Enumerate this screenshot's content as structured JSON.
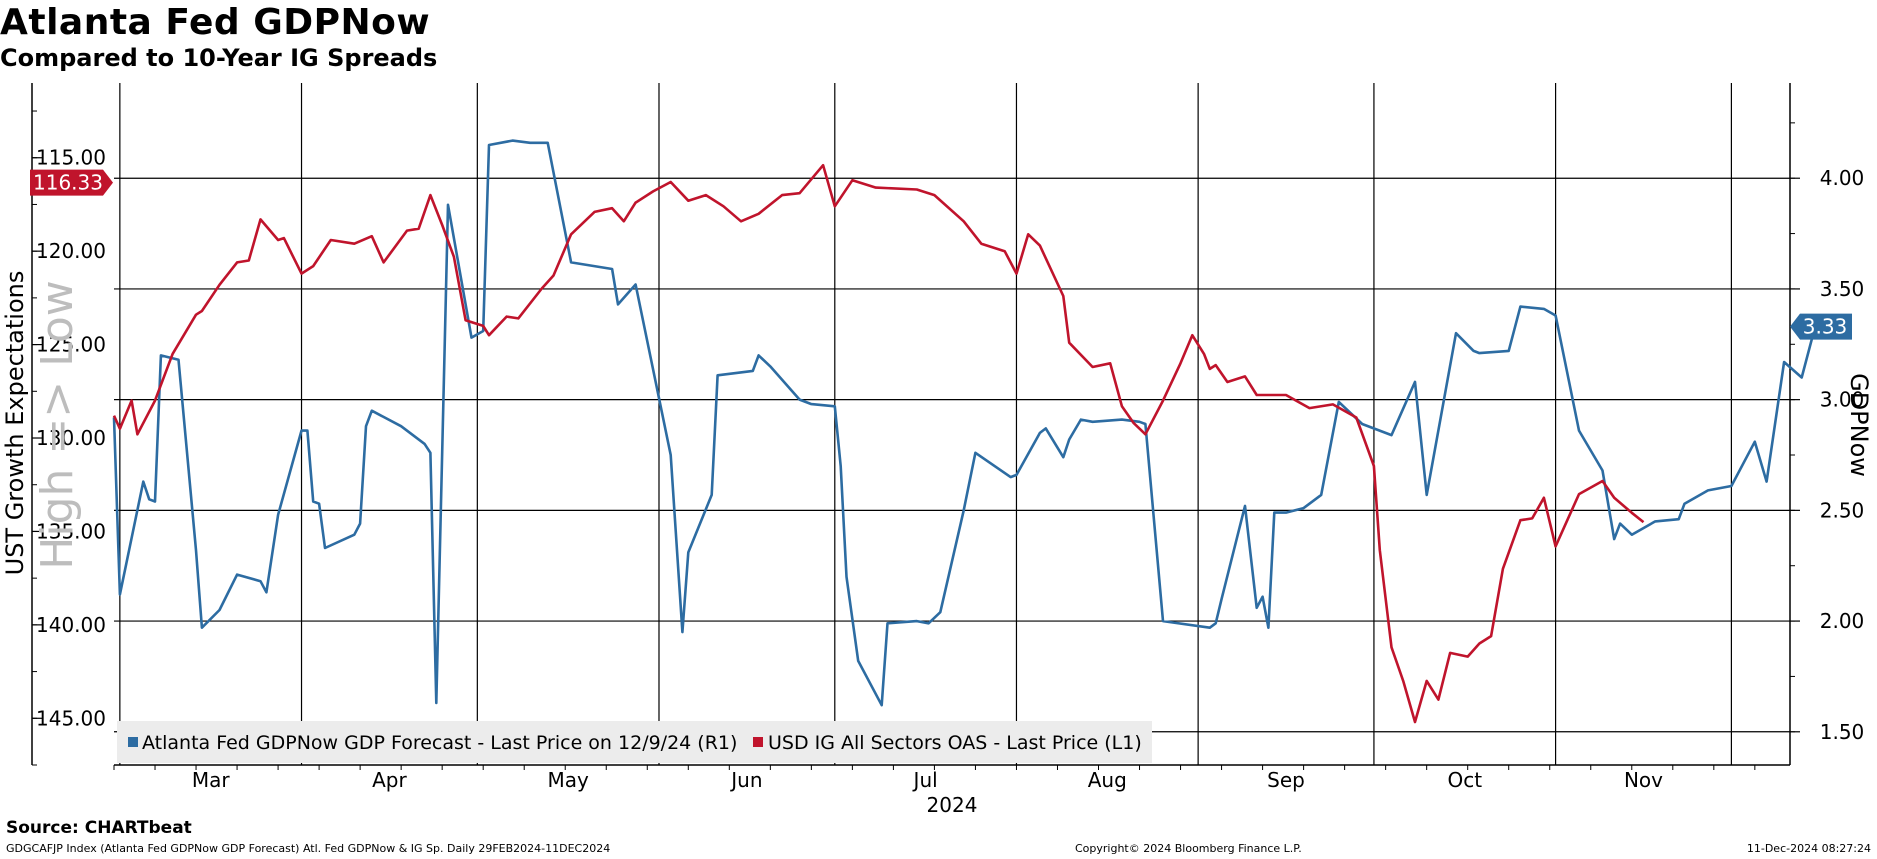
{
  "header": {
    "title": "Atlanta Fed GDPNow",
    "subtitle": "Compared to 10-Year IG Spreads"
  },
  "footer": {
    "source": "Source: CHARTbeat",
    "left": "GDGCAFJP Index (Atlanta Fed GDPNow GDP Forecast) Atl. Fed GDPNow & IG Sp.  Daily 29FEB2024-11DEC2024",
    "center": "Copyright© 2024 Bloomberg Finance L.P.",
    "right": "11-Dec-2024 08:27:24"
  },
  "colors": {
    "gdpnow": "#2d6ca2",
    "spread": "#c0142c",
    "grid": "#000000",
    "legend_bg": "#ececec"
  },
  "chart_data": {
    "type": "line",
    "title": "Atlanta Fed GDPNow",
    "subtitle": "Compared to 10-Year IG Spreads",
    "xlabel": "2024",
    "x_range": [
      "2024-02-29",
      "2024-12-11"
    ],
    "x_ticks": [
      "Mar",
      "Apr",
      "May",
      "Jun",
      "Jul",
      "Aug",
      "Sep",
      "Oct",
      "Nov"
    ],
    "y_left": {
      "label": "UST Growth Expectations",
      "annotation": "High => Low",
      "inverted": true,
      "range": [
        147.5,
        111.0
      ],
      "ticks": [
        "115.00",
        "120.00",
        "125.00",
        "130.00",
        "135.00",
        "140.00",
        "145.00"
      ]
    },
    "y_right": {
      "label": "GDPNow",
      "range": [
        1.35,
        4.43
      ],
      "ticks": [
        "1.50",
        "2.00",
        "2.50",
        "3.00",
        "3.50",
        "4.00"
      ]
    },
    "legend": [
      "Atlanta Fed GDPNow GDP Forecast - Last Price on 12/9/24 (R1)",
      "USD IG All Sectors OAS - Last Price (L1)"
    ],
    "last_values": {
      "spread": "116.33",
      "gdpnow": "3.33"
    },
    "series": [
      {
        "name": "Atlanta Fed GDPNow GDP Forecast - Last Price on 12/9/24 (R1)",
        "axis": "right",
        "points": [
          [
            "2024-02-29",
            2.92
          ],
          [
            "2024-03-01",
            2.12
          ],
          [
            "2024-03-05",
            2.63
          ],
          [
            "2024-03-06",
            2.55
          ],
          [
            "2024-03-07",
            2.54
          ],
          [
            "2024-03-08",
            3.2
          ],
          [
            "2024-03-11",
            3.18
          ],
          [
            "2024-03-14",
            2.32
          ],
          [
            "2024-03-15",
            1.97
          ],
          [
            "2024-03-18",
            2.05
          ],
          [
            "2024-03-21",
            2.21
          ],
          [
            "2024-03-25",
            2.18
          ],
          [
            "2024-03-26",
            2.13
          ],
          [
            "2024-03-28",
            2.48
          ],
          [
            "2024-04-01",
            2.86
          ],
          [
            "2024-04-02",
            2.86
          ],
          [
            "2024-04-03",
            2.54
          ],
          [
            "2024-04-04",
            2.53
          ],
          [
            "2024-04-05",
            2.33
          ],
          [
            "2024-04-10",
            2.39
          ],
          [
            "2024-04-11",
            2.44
          ],
          [
            "2024-04-12",
            2.88
          ],
          [
            "2024-04-13",
            2.95
          ],
          [
            "2024-04-18",
            2.88
          ],
          [
            "2024-04-22",
            2.8
          ],
          [
            "2024-04-23",
            2.76
          ],
          [
            "2024-04-24",
            1.63
          ],
          [
            "2024-04-26",
            3.88
          ],
          [
            "2024-04-30",
            3.28
          ],
          [
            "2024-05-02",
            3.31
          ],
          [
            "2024-05-03",
            4.15
          ],
          [
            "2024-05-07",
            4.17
          ],
          [
            "2024-05-10",
            4.16
          ],
          [
            "2024-05-13",
            4.16
          ],
          [
            "2024-05-17",
            3.62
          ],
          [
            "2024-05-24",
            3.59
          ],
          [
            "2024-05-25",
            3.43
          ],
          [
            "2024-05-28",
            3.52
          ],
          [
            "2024-06-03",
            2.75
          ],
          [
            "2024-06-05",
            1.95
          ],
          [
            "2024-06-06",
            2.31
          ],
          [
            "2024-06-10",
            2.57
          ],
          [
            "2024-06-11",
            3.11
          ],
          [
            "2024-06-17",
            3.13
          ],
          [
            "2024-06-18",
            3.2
          ],
          [
            "2024-06-20",
            3.15
          ],
          [
            "2024-06-25",
            3.0
          ],
          [
            "2024-06-27",
            2.98
          ],
          [
            "2024-07-01",
            2.97
          ],
          [
            "2024-07-02",
            2.7
          ],
          [
            "2024-07-03",
            2.2
          ],
          [
            "2024-07-05",
            1.82
          ],
          [
            "2024-07-09",
            1.62
          ],
          [
            "2024-07-10",
            1.99
          ],
          [
            "2024-07-15",
            2.0
          ],
          [
            "2024-07-17",
            1.99
          ],
          [
            "2024-07-19",
            2.04
          ],
          [
            "2024-07-23",
            2.5
          ],
          [
            "2024-07-25",
            2.76
          ],
          [
            "2024-07-31",
            2.65
          ],
          [
            "2024-08-01",
            2.66
          ],
          [
            "2024-08-05",
            2.85
          ],
          [
            "2024-08-06",
            2.87
          ],
          [
            "2024-08-09",
            2.74
          ],
          [
            "2024-08-10",
            2.82
          ],
          [
            "2024-08-12",
            2.91
          ],
          [
            "2024-08-14",
            2.9
          ],
          [
            "2024-08-19",
            2.91
          ],
          [
            "2024-08-22",
            2.9
          ],
          [
            "2024-08-23",
            2.89
          ],
          [
            "2024-08-26",
            2.0
          ],
          [
            "2024-09-03",
            1.97
          ],
          [
            "2024-09-04",
            1.99
          ],
          [
            "2024-09-05",
            2.1
          ],
          [
            "2024-09-09",
            2.52
          ],
          [
            "2024-09-11",
            2.06
          ],
          [
            "2024-09-12",
            2.11
          ],
          [
            "2024-09-13",
            1.97
          ],
          [
            "2024-09-14",
            2.49
          ],
          [
            "2024-09-16",
            2.49
          ],
          [
            "2024-09-19",
            2.51
          ],
          [
            "2024-09-22",
            2.57
          ],
          [
            "2024-09-25",
            2.99
          ],
          [
            "2024-09-29",
            2.89
          ],
          [
            "2024-10-04",
            2.84
          ],
          [
            "2024-10-08",
            3.08
          ],
          [
            "2024-10-10",
            2.57
          ],
          [
            "2024-10-15",
            3.3
          ],
          [
            "2024-10-18",
            3.22
          ],
          [
            "2024-10-19",
            3.21
          ],
          [
            "2024-10-24",
            3.22
          ],
          [
            "2024-10-26",
            3.42
          ],
          [
            "2024-10-30",
            3.41
          ],
          [
            "2024-11-01",
            3.38
          ],
          [
            "2024-11-05",
            2.86
          ],
          [
            "2024-11-09",
            2.68
          ],
          [
            "2024-11-11",
            2.37
          ],
          [
            "2024-11-12",
            2.44
          ],
          [
            "2024-11-14",
            2.39
          ],
          [
            "2024-11-18",
            2.45
          ],
          [
            "2024-11-22",
            2.46
          ],
          [
            "2024-11-23",
            2.53
          ],
          [
            "2024-11-27",
            2.59
          ],
          [
            "2024-12-01",
            2.61
          ],
          [
            "2024-12-05",
            2.81
          ],
          [
            "2024-12-07",
            2.63
          ],
          [
            "2024-12-10",
            3.17
          ],
          [
            "2024-12-13",
            3.1
          ],
          [
            "2024-12-15",
            3.3
          ],
          [
            "2024-12-17",
            3.33
          ],
          [
            "2024-12-18",
            3.33
          ]
        ]
      },
      {
        "name": "USD IG All Sectors OAS - Last Price (L1)",
        "axis": "left",
        "points": [
          [
            "2024-02-29",
            128.8
          ],
          [
            "2024-03-01",
            129.5
          ],
          [
            "2024-03-03",
            128.0
          ],
          [
            "2024-03-04",
            129.8
          ],
          [
            "2024-03-07",
            128.0
          ],
          [
            "2024-03-10",
            125.5
          ],
          [
            "2024-03-14",
            123.4
          ],
          [
            "2024-03-15",
            123.2
          ],
          [
            "2024-03-18",
            121.8
          ],
          [
            "2024-03-21",
            120.6
          ],
          [
            "2024-03-23",
            120.5
          ],
          [
            "2024-03-25",
            118.3
          ],
          [
            "2024-03-28",
            119.4
          ],
          [
            "2024-03-29",
            119.3
          ],
          [
            "2024-04-01",
            121.2
          ],
          [
            "2024-04-03",
            120.8
          ],
          [
            "2024-04-06",
            119.4
          ],
          [
            "2024-04-10",
            119.6
          ],
          [
            "2024-04-13",
            119.2
          ],
          [
            "2024-04-15",
            120.6
          ],
          [
            "2024-04-19",
            118.9
          ],
          [
            "2024-04-21",
            118.8
          ],
          [
            "2024-04-23",
            117.0
          ],
          [
            "2024-04-25",
            118.6
          ],
          [
            "2024-04-27",
            120.3
          ],
          [
            "2024-04-29",
            123.7
          ],
          [
            "2024-05-02",
            124.0
          ],
          [
            "2024-05-03",
            124.5
          ],
          [
            "2024-05-06",
            123.5
          ],
          [
            "2024-05-08",
            123.6
          ],
          [
            "2024-05-12",
            122.0
          ],
          [
            "2024-05-14",
            121.3
          ],
          [
            "2024-05-17",
            119.1
          ],
          [
            "2024-05-21",
            117.9
          ],
          [
            "2024-05-24",
            117.7
          ],
          [
            "2024-05-26",
            118.4
          ],
          [
            "2024-05-28",
            117.4
          ],
          [
            "2024-05-31",
            116.8
          ],
          [
            "2024-06-03",
            116.3
          ],
          [
            "2024-06-06",
            117.3
          ],
          [
            "2024-06-09",
            117.0
          ],
          [
            "2024-06-12",
            117.6
          ],
          [
            "2024-06-15",
            118.4
          ],
          [
            "2024-06-18",
            118.0
          ],
          [
            "2024-06-22",
            117.0
          ],
          [
            "2024-06-25",
            116.9
          ],
          [
            "2024-06-29",
            115.4
          ],
          [
            "2024-07-01",
            117.6
          ],
          [
            "2024-07-04",
            116.2
          ],
          [
            "2024-07-08",
            116.6
          ],
          [
            "2024-07-15",
            116.7
          ],
          [
            "2024-07-18",
            117.0
          ],
          [
            "2024-07-23",
            118.4
          ],
          [
            "2024-07-26",
            119.6
          ],
          [
            "2024-07-30",
            120.0
          ],
          [
            "2024-08-01",
            121.2
          ],
          [
            "2024-08-03",
            119.1
          ],
          [
            "2024-08-05",
            119.7
          ],
          [
            "2024-08-09",
            122.4
          ],
          [
            "2024-08-10",
            124.9
          ],
          [
            "2024-08-14",
            126.2
          ],
          [
            "2024-08-17",
            126.0
          ],
          [
            "2024-08-19",
            128.3
          ],
          [
            "2024-08-21",
            129.2
          ],
          [
            "2024-08-23",
            129.8
          ],
          [
            "2024-08-26",
            128.0
          ],
          [
            "2024-08-29",
            126.0
          ],
          [
            "2024-08-31",
            124.5
          ],
          [
            "2024-09-02",
            125.5
          ],
          [
            "2024-09-03",
            126.3
          ],
          [
            "2024-09-04",
            126.1
          ],
          [
            "2024-09-06",
            127.0
          ],
          [
            "2024-09-09",
            126.7
          ],
          [
            "2024-09-11",
            127.7
          ],
          [
            "2024-09-16",
            127.7
          ],
          [
            "2024-09-20",
            128.4
          ],
          [
            "2024-09-24",
            128.2
          ],
          [
            "2024-09-28",
            128.9
          ],
          [
            "2024-10-01",
            131.5
          ],
          [
            "2024-10-02",
            136.0
          ],
          [
            "2024-10-04",
            141.2
          ],
          [
            "2024-10-06",
            143.0
          ],
          [
            "2024-10-08",
            145.2
          ],
          [
            "2024-10-10",
            143.0
          ],
          [
            "2024-10-12",
            144.0
          ],
          [
            "2024-10-14",
            141.5
          ],
          [
            "2024-10-17",
            141.7
          ],
          [
            "2024-10-19",
            141.0
          ],
          [
            "2024-10-21",
            140.6
          ],
          [
            "2024-10-23",
            137.0
          ],
          [
            "2024-10-26",
            134.4
          ],
          [
            "2024-10-28",
            134.3
          ],
          [
            "2024-10-30",
            133.2
          ],
          [
            "2024-11-01",
            135.8
          ],
          [
            "2024-11-03",
            134.4
          ],
          [
            "2024-11-05",
            133.0
          ],
          [
            "2024-11-09",
            132.3
          ],
          [
            "2024-11-11",
            133.2
          ],
          [
            "2024-11-14",
            134.0
          ],
          [
            "2024-11-16",
            134.5
          ]
        ]
      }
    ]
  }
}
